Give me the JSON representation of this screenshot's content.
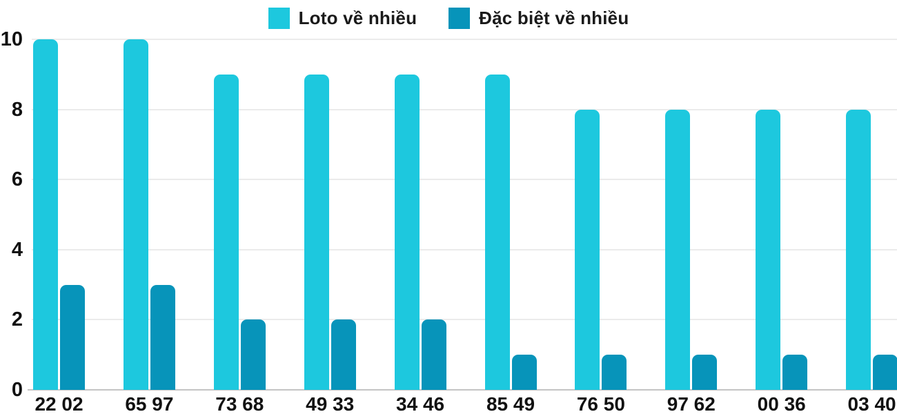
{
  "chart_data": {
    "type": "bar",
    "title": "",
    "xlabel": "",
    "ylabel": "",
    "categories": [
      "22 02",
      "65 97",
      "73 68",
      "49 33",
      "34 46",
      "85 49",
      "76 50",
      "97 62",
      "00 36",
      "03 40"
    ],
    "series": [
      {
        "name": "Loto về nhiều",
        "color": "#1DC8DE",
        "values": [
          10,
          10,
          9,
          9,
          9,
          9,
          8,
          8,
          8,
          8
        ]
      },
      {
        "name": "Đặc biệt về nhiều",
        "color": "#0794BA",
        "values": [
          3,
          3,
          2,
          2,
          2,
          1,
          1,
          1,
          1,
          1
        ]
      }
    ],
    "yticks": [
      0,
      2,
      4,
      6,
      8,
      10
    ],
    "ylim": [
      0,
      10
    ],
    "grid": true,
    "legend_position": "top-center",
    "colors": {
      "gridline": "#EBEBEB",
      "baseline": "#C4C4C4",
      "text": "#111111",
      "background": "#FFFFFF"
    }
  }
}
